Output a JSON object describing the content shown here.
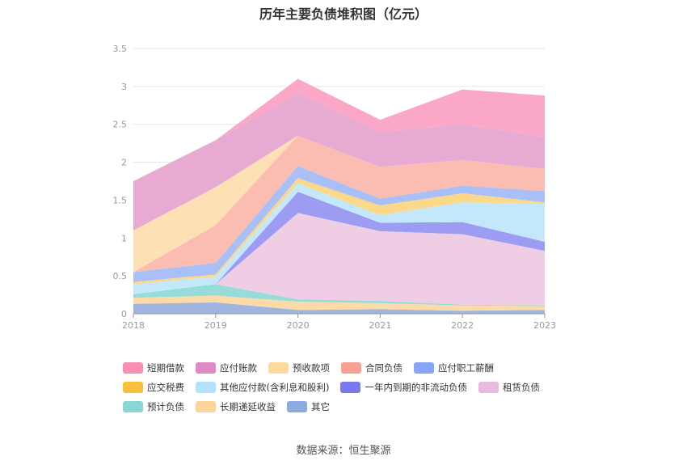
{
  "title": "历年主要负债堆积图（亿元）",
  "source": "数据来源：恒生聚源",
  "chart_data": {
    "type": "area",
    "stacked": true,
    "categories": [
      "2018",
      "2019",
      "2020",
      "2021",
      "2022",
      "2023"
    ],
    "ylim": [
      0,
      3.5
    ],
    "yticks": [
      "0",
      "0.5",
      "1",
      "1.5",
      "2",
      "2.5",
      "3",
      "3.5"
    ],
    "grid": true,
    "legend_position": "bottom",
    "series": [
      {
        "name": "其它",
        "color": "#9fb5e0",
        "values": [
          0.13,
          0.15,
          0.05,
          0.06,
          0.04,
          0.05
        ]
      },
      {
        "name": "长期递延收益",
        "color": "#fddba8",
        "values": [
          0.08,
          0.09,
          0.11,
          0.08,
          0.07,
          0.05
        ]
      },
      {
        "name": "预计负债",
        "color": "#96dcd8",
        "values": [
          0.05,
          0.15,
          0.03,
          0.03,
          0.01,
          0.01
        ]
      },
      {
        "name": "租赁负债",
        "color": "#efcde5",
        "values": [
          0.0,
          0.0,
          1.14,
          0.92,
          0.93,
          0.72
        ]
      },
      {
        "name": "一年内到期的非流动负债",
        "color": "#9b9cf2",
        "values": [
          0.0,
          0.0,
          0.28,
          0.11,
          0.16,
          0.12
        ]
      },
      {
        "name": "其他应付款(含利息和股利)",
        "color": "#c3e8fb",
        "values": [
          0.13,
          0.1,
          0.11,
          0.1,
          0.26,
          0.5
        ]
      },
      {
        "name": "应交税费",
        "color": "#fbd98b",
        "values": [
          0.03,
          0.03,
          0.07,
          0.13,
          0.12,
          0.02
        ]
      },
      {
        "name": "应付职工薪酬",
        "color": "#a9bff7",
        "values": [
          0.13,
          0.15,
          0.16,
          0.09,
          0.1,
          0.15
        ]
      },
      {
        "name": "合同负债",
        "color": "#fbbcb2",
        "values": [
          0.0,
          0.5,
          0.4,
          0.42,
          0.34,
          0.29
        ]
      },
      {
        "name": "预收款项",
        "color": "#fee0b5",
        "values": [
          0.55,
          0.5,
          0.0,
          0.0,
          0.0,
          0.0
        ]
      },
      {
        "name": "应付账款",
        "color": "#e6aad3",
        "values": [
          0.65,
          0.62,
          0.56,
          0.46,
          0.47,
          0.42
        ]
      },
      {
        "name": "短期借款",
        "color": "#fba8c8",
        "values": [
          0.0,
          0.0,
          0.19,
          0.16,
          0.46,
          0.55
        ]
      }
    ]
  },
  "legend": [
    {
      "label": "短期借款",
      "color": "#f78eb3"
    },
    {
      "label": "应付账款",
      "color": "#dc8bc6"
    },
    {
      "label": "预收款项",
      "color": "#fdd9a0"
    },
    {
      "label": "合同负债",
      "color": "#f9a193"
    },
    {
      "label": "应付职工薪酬",
      "color": "#88a6f5"
    },
    {
      "label": "应交税费",
      "color": "#f9c03c"
    },
    {
      "label": "其他应付款(含利息和股利)",
      "color": "#b4e1fb"
    },
    {
      "label": "一年内到期的非流动负债",
      "color": "#7a79ee"
    },
    {
      "label": "租赁负债",
      "color": "#eab9de"
    },
    {
      "label": "预计负债",
      "color": "#8ad6d4"
    },
    {
      "label": "长期递延收益",
      "color": "#fdd49b"
    },
    {
      "label": "其它",
      "color": "#8dabde"
    }
  ]
}
